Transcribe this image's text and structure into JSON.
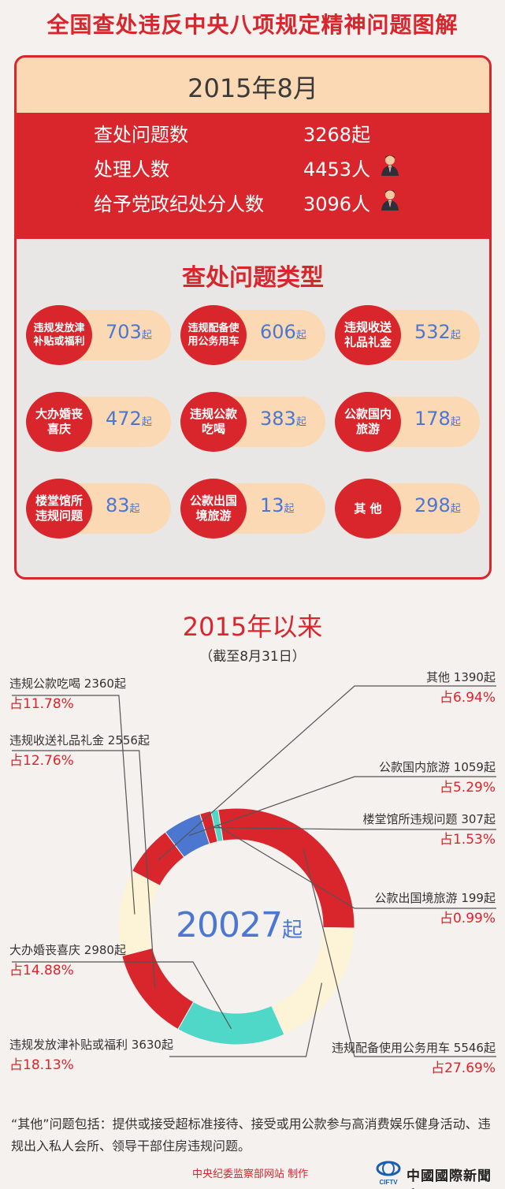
{
  "title": "全国查处违反中央八项规定精神问题图解",
  "month_section": {
    "period": "2015年8月",
    "stats": [
      {
        "label": "查处问题数",
        "value": "3268起",
        "icon": "person-icon",
        "show_icon": false
      },
      {
        "label": "处理人数",
        "value": "4453人",
        "icon": "person-icon",
        "show_icon": true
      },
      {
        "label": "给予党政纪处分人数",
        "value": "3096人",
        "icon": "person-icon",
        "show_icon": true
      }
    ],
    "types_title": "查处问题类型",
    "types": [
      {
        "name": "违规发放津补贴或福利",
        "value": "703",
        "unit": "起"
      },
      {
        "name": "违规配备使用公务用车",
        "value": "606",
        "unit": "起"
      },
      {
        "name": "违规收送礼品礼金",
        "value": "532",
        "unit": "起"
      },
      {
        "name": "大办婚丧喜庆",
        "value": "472",
        "unit": "起"
      },
      {
        "name": "违规公款吃喝",
        "value": "383",
        "unit": "起"
      },
      {
        "name": "公款国内旅游",
        "value": "178",
        "unit": "起"
      },
      {
        "name": "楼堂馆所违规问题",
        "value": "83",
        "unit": "起"
      },
      {
        "name": "公款出国境旅游",
        "value": "13",
        "unit": "起"
      },
      {
        "name": "其 他",
        "value": "298",
        "unit": "起"
      }
    ]
  },
  "ytd_section": {
    "title": "2015年以来",
    "subtitle": "（截至8月31日）",
    "total_value": "20027",
    "total_unit": "起"
  },
  "chart_data": {
    "type": "pie",
    "subtype": "donut",
    "unit": "起",
    "slices": [
      {
        "label": "其他",
        "value": 1390,
        "percent": "占6.94%",
        "color": "#d8262c"
      },
      {
        "label": "公款国内旅游",
        "value": 1059,
        "percent": "占5.29%",
        "color": "#4b77d1"
      },
      {
        "label": "楼堂馆所违规问题",
        "value": 307,
        "percent": "占1.53%",
        "color": "#d8262c"
      },
      {
        "label": "公款出国境旅游",
        "value": 199,
        "percent": "占0.99%",
        "color": "#4fd8c8"
      },
      {
        "label": "违规配备使用公务用车",
        "value": 5546,
        "percent": "占27.69%",
        "color": "#d8262c"
      },
      {
        "label": "违规发放津补贴或福利",
        "value": 3630,
        "percent": "占18.13%",
        "color": "#fdf3d6"
      },
      {
        "label": "大办婚丧喜庆",
        "value": 2980,
        "percent": "占14.88%",
        "color": "#4fd8c8"
      },
      {
        "label": "违规收送礼品礼金",
        "value": 2556,
        "percent": "占12.76%",
        "color": "#d8262c"
      },
      {
        "label": "违规公款吃喝",
        "value": 2360,
        "percent": "占11.78%",
        "color": "#fdf3d6"
      }
    ]
  },
  "footnote": "“其他”问题包括：提供或接受超标准接待、接受或用公款参与高消费娱乐健身活动、违规出入私人会所、领导干部住房违规问题。",
  "credit": "中央纪委监察部网站 制作",
  "logo": {
    "icon": "ciftv-globe-icon",
    "sub": "CIFTV",
    "text": "中國國際新聞臺"
  },
  "colors": {
    "red": "#d8262c",
    "peach": "#fbd9b4",
    "blue": "#4b77d1",
    "teal": "#4fd8c8",
    "cream": "#fdf3d6"
  }
}
